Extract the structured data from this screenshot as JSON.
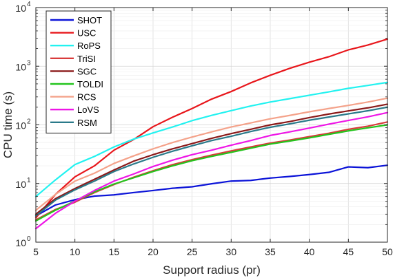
{
  "chart_data": {
    "type": "line",
    "xlabel": "Support radius (pr)",
    "ylabel": "CPU time (s)",
    "xlim": [
      5,
      50
    ],
    "ylim": [
      1,
      10000
    ],
    "y_scale": "log",
    "grid": true,
    "legend_position": "top-left",
    "x_ticks": [
      5,
      10,
      15,
      20,
      25,
      30,
      35,
      40,
      45,
      50
    ],
    "y_ticks": [
      {
        "base": "10",
        "exp": "0",
        "value": 1
      },
      {
        "base": "10",
        "exp": "1",
        "value": 10
      },
      {
        "base": "10",
        "exp": "2",
        "value": 100
      },
      {
        "base": "10",
        "exp": "3",
        "value": 1000
      },
      {
        "base": "10",
        "exp": "4",
        "value": 10000
      }
    ],
    "x": [
      5,
      7.5,
      10,
      12.5,
      15,
      17.5,
      20,
      22.5,
      25,
      27.5,
      30,
      32.5,
      35,
      37.5,
      40,
      42.5,
      45,
      47.5,
      50
    ],
    "series": [
      {
        "name": "SHOT",
        "color": "#0b13d8",
        "values": [
          2.8,
          4.3,
          5.3,
          6.1,
          6.4,
          7.0,
          7.6,
          8.3,
          8.8,
          9.9,
          11.0,
          11.3,
          12.4,
          13.2,
          14.2,
          15.5,
          19.2,
          18.6,
          20.5
        ]
      },
      {
        "name": "USC",
        "color": "#e8161b",
        "values": [
          2.6,
          6.5,
          13.0,
          20.0,
          37.0,
          56.0,
          93.0,
          135.0,
          190.0,
          275.0,
          370.0,
          520.0,
          700.0,
          920.0,
          1170.0,
          1450.0,
          1900.0,
          2300.0,
          2900.0
        ]
      },
      {
        "name": "RoPS",
        "color": "#22f2f0",
        "values": [
          6.0,
          11.5,
          21.0,
          29.0,
          42.0,
          57.0,
          73.0,
          92.0,
          118.0,
          145.0,
          175.0,
          210.0,
          245.0,
          280.0,
          320.0,
          365.0,
          420.0,
          470.0,
          530.0
        ]
      },
      {
        "name": "TriSI",
        "color": "#d93b3b",
        "values": [
          2.4,
          3.6,
          4.8,
          7.0,
          9.6,
          12.8,
          16.5,
          21.0,
          25.5,
          30.5,
          36.0,
          42.0,
          49.0,
          55.0,
          63.0,
          72.0,
          84.0,
          95.0,
          112.0
        ]
      },
      {
        "name": "SGC",
        "color": "#8b1a1a",
        "values": [
          3.0,
          5.5,
          8.2,
          11.8,
          17.0,
          24.0,
          31.0,
          39.0,
          48.0,
          59.0,
          71.0,
          84.0,
          100.0,
          114.0,
          133.0,
          153.0,
          173.0,
          195.0,
          225.0
        ]
      },
      {
        "name": "TOLDI",
        "color": "#22c41c",
        "values": [
          2.3,
          3.5,
          5.0,
          7.2,
          9.8,
          12.5,
          16.0,
          20.0,
          24.5,
          29.0,
          34.0,
          40.0,
          47.0,
          53.0,
          60.0,
          69.0,
          79.0,
          89.0,
          100.0
        ]
      },
      {
        "name": "RCS",
        "color": "#f4a28a",
        "values": [
          3.5,
          6.5,
          11.0,
          15.0,
          22.0,
          29.5,
          39.0,
          50.0,
          62.0,
          76.0,
          92.0,
          108.0,
          127.0,
          145.0,
          167.0,
          190.0,
          215.0,
          245.0,
          285.0
        ]
      },
      {
        "name": "LoVS",
        "color": "#ee16e6",
        "values": [
          1.7,
          3.1,
          5.0,
          7.6,
          11.0,
          14.5,
          19.5,
          25.0,
          31.0,
          37.0,
          45.0,
          54.0,
          66.0,
          76.0,
          88.0,
          103.0,
          119.0,
          137.0,
          162.0
        ]
      },
      {
        "name": "RSM",
        "color": "#2a7a8a",
        "values": [
          2.8,
          5.2,
          7.8,
          11.0,
          16.0,
          21.5,
          28.0,
          35.5,
          44.0,
          54.0,
          64.0,
          77.0,
          91.0,
          104.0,
          120.0,
          136.0,
          154.0,
          174.0,
          200.0
        ]
      }
    ]
  }
}
